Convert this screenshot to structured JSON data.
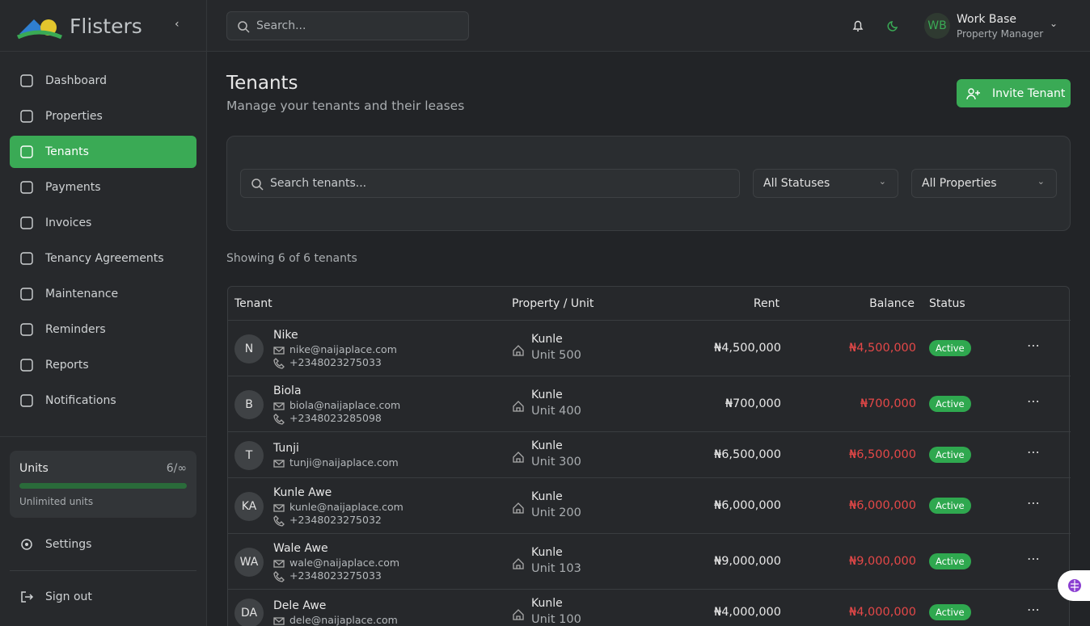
{
  "sidebar": {
    "brand": "Flisters",
    "nav": [
      "Dashboard",
      "Properties",
      "Tenants",
      "Payments",
      "Invoices",
      "Tenancy Agreements",
      "Maintenance",
      "Reminders",
      "Reports",
      "Notifications"
    ],
    "units": {
      "label": "Units",
      "count": "6/∞",
      "note": "Unlimited units"
    },
    "settings": "Settings",
    "signout": "Sign out"
  },
  "topbar": {
    "search": "Search...",
    "avatar": "WB",
    "user": "Work Base",
    "role": "Property Manager"
  },
  "header": {
    "title": "Tenants",
    "subtitle": "Manage your tenants and their leases",
    "button": "Invite Tenant"
  },
  "filters": {
    "search": "Search tenants...",
    "status": "All Statuses",
    "property": "All Properties"
  },
  "summary": "Showing 6 of 6 tenants",
  "table": {
    "columns": [
      "Tenant",
      "Property / Unit",
      "Rent",
      "Balance",
      "Status"
    ],
    "rows": [
      {
        "initials": "N",
        "name": "Nike",
        "email": "nike@naijaplace.com",
        "phone": "+2348023275033",
        "property": "Kunle",
        "unit": "Unit 500",
        "rent": "₦4,500,000",
        "balance": "₦4,500,000",
        "status": "Active"
      },
      {
        "initials": "B",
        "name": "Biola",
        "email": "biola@naijaplace.com",
        "phone": "+2348023285098",
        "property": "Kunle",
        "unit": "Unit 400",
        "rent": "₦700,000",
        "balance": "₦700,000",
        "status": "Active"
      },
      {
        "initials": "T",
        "name": "Tunji",
        "email": "tunji@naijaplace.com",
        "property": "Kunle",
        "unit": "Unit 300",
        "rent": "₦6,500,000",
        "balance": "₦6,500,000",
        "status": "Active"
      },
      {
        "initials": "KA",
        "name": "Kunle Awe",
        "email": "kunle@naijaplace.com",
        "phone": "+2348023275032",
        "property": "Kunle",
        "unit": "Unit 200",
        "rent": "₦6,000,000",
        "balance": "₦6,000,000",
        "status": "Active"
      },
      {
        "initials": "WA",
        "name": "Wale Awe",
        "email": "wale@naijaplace.com",
        "phone": "+2348023275033",
        "property": "Kunle",
        "unit": "Unit 103",
        "rent": "₦9,000,000",
        "balance": "₦9,000,000",
        "status": "Active"
      },
      {
        "initials": "DA",
        "name": "Dele Awe",
        "email": "dele@naijaplace.com",
        "property": "Kunle",
        "unit": "Unit 100",
        "rent": "₦4,000,000",
        "balance": "₦4,000,000",
        "status": "Active"
      }
    ]
  }
}
